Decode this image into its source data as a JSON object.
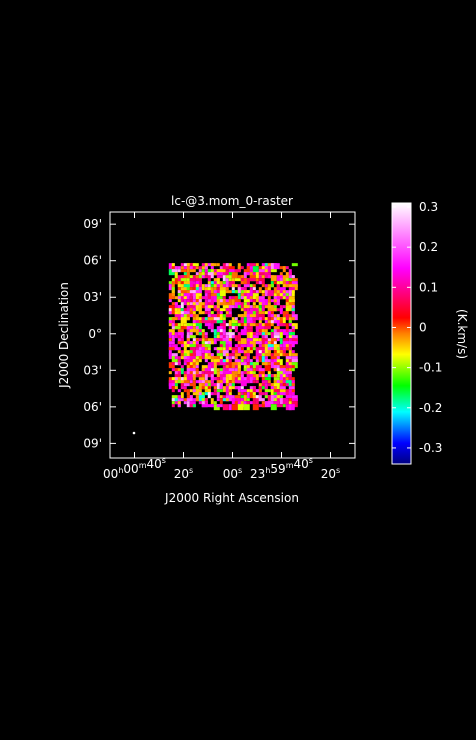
{
  "chart_data": {
    "type": "heatmap",
    "title": "lc-@3.mom_0-raster",
    "xlabel": "J2000 Right Ascension",
    "ylabel": "J2000 Declination",
    "x_ticks": [
      {
        "h": "00",
        "m": "00",
        "s": "40",
        "value_sec": 40
      },
      {
        "h": "",
        "m": "",
        "s": "20",
        "value_sec": 20
      },
      {
        "h": "",
        "m": "",
        "s": "00",
        "value_sec": 0
      },
      {
        "h": "23",
        "m": "59",
        "s": "40",
        "value_sec": -20
      },
      {
        "h": "",
        "m": "",
        "s": "20",
        "value_sec": -40
      }
    ],
    "y_ticks": [
      {
        "label": "09'",
        "value_arcmin": 9
      },
      {
        "label": "06'",
        "value_arcmin": 6
      },
      {
        "label": "03'",
        "value_arcmin": 3
      },
      {
        "label": "0°",
        "value_arcmin": 0
      },
      {
        "label": "03'",
        "value_arcmin": -3
      },
      {
        "label": "06'",
        "value_arcmin": -6
      },
      {
        "label": "09'",
        "value_arcmin": -9
      }
    ],
    "xlim_sec": [
      50,
      -50
    ],
    "ylim_arcmin": [
      -10.2,
      10
    ],
    "map_extent": {
      "x_sec": [
        26,
        -25
      ],
      "y_arcmin": [
        5.8,
        -5.8
      ]
    },
    "colorbar": {
      "label": "(K.km/s)",
      "range": [
        -0.34,
        0.31
      ],
      "ticks": [
        0.3,
        0.2,
        0.1,
        0,
        -0.1,
        -0.2,
        -0.3
      ],
      "tick_labels": [
        "0.3",
        "0.2",
        "0.1",
        "0",
        "-0.1",
        "-0.2",
        "-0.3"
      ],
      "colors": [
        "#000080",
        "#0000ff",
        "#00ffff",
        "#00ff00",
        "#ffff00",
        "#ff8000",
        "#ff0000",
        "#ff00ff",
        "#ffffff"
      ]
    },
    "grid": false,
    "beam_marker": "bottom-left"
  }
}
